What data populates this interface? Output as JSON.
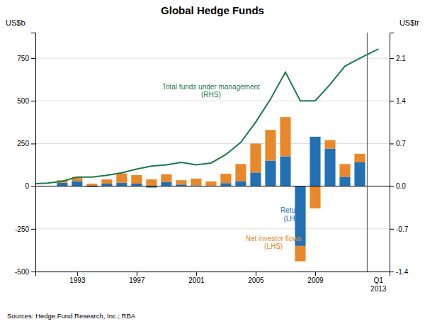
{
  "chart_data": {
    "type": "bar",
    "title": "Global Hedge Funds",
    "ylabel": "US$b",
    "y2label": "US$tr",
    "source": "Sources: Hedge Fund Research, Inc.; RBA",
    "stacked": true,
    "grid": true,
    "x": [
      1992,
      1993,
      1994,
      1995,
      1996,
      1997,
      1998,
      1999,
      2000,
      2001,
      2002,
      2003,
      2004,
      2005,
      2006,
      2007,
      2008,
      2009,
      2010,
      2011,
      2012
    ],
    "series": [
      {
        "type": "bar",
        "color": "#2271b3",
        "values": [
          20,
          30,
          -5,
          15,
          20,
          15,
          -8,
          25,
          10,
          5,
          3,
          18,
          30,
          80,
          150,
          175,
          -350,
          290,
          220,
          55,
          140
        ]
      },
      {
        "type": "bar",
        "color": "#e8882a",
        "values": [
          15,
          25,
          15,
          25,
          55,
          50,
          40,
          45,
          25,
          40,
          25,
          55,
          100,
          170,
          180,
          230,
          -90,
          -130,
          50,
          75,
          50
        ]
      },
      {
        "type": "line",
        "axis": "y2",
        "color": "#1a7a4a",
        "x": [
          1990,
          1991,
          1992,
          1993,
          1994,
          1995,
          1996,
          1997,
          1998,
          1999,
          2000,
          2001,
          2002,
          2003,
          2004,
          2005,
          2006,
          2007,
          2008,
          2009,
          2010,
          2011,
          2012,
          2013.25
        ],
        "values": [
          0.04,
          0.05,
          0.08,
          0.15,
          0.15,
          0.18,
          0.22,
          0.28,
          0.33,
          0.35,
          0.39,
          0.35,
          0.38,
          0.52,
          0.72,
          1.05,
          1.43,
          1.87,
          1.4,
          1.4,
          1.67,
          1.97,
          2.1,
          2.25
        ]
      }
    ],
    "vline": 2012.5,
    "xlim": [
      1990.2,
      2014.0
    ],
    "xticks": [
      1993,
      1997,
      2001,
      2005,
      2009
    ],
    "ylim": [
      -500,
      900
    ],
    "yticks": [
      -500,
      -250,
      0,
      250,
      500,
      750
    ],
    "y2lim": [
      -1.4,
      2.52
    ],
    "y2ticks": [
      -1.4,
      -0.7,
      {
        "value": 0.0,
        "label": "0.0"
      },
      0.7,
      1.4,
      2.1
    ],
    "annotations": [
      {
        "text": "Q1\n2013",
        "x": 2013.25
      },
      {
        "text": "Total funds under management\n(RHS)",
        "x": 2002.0,
        "y": 560,
        "color": "#1a7a4a"
      },
      {
        "text": "Returns\n(LHS)",
        "x": 2007.5,
        "y": -165,
        "color": "#2271b3"
      },
      {
        "text": "Net investor flows\n(LHS)",
        "x": 2006.2,
        "y": -330,
        "color": "#e8882a"
      }
    ]
  }
}
